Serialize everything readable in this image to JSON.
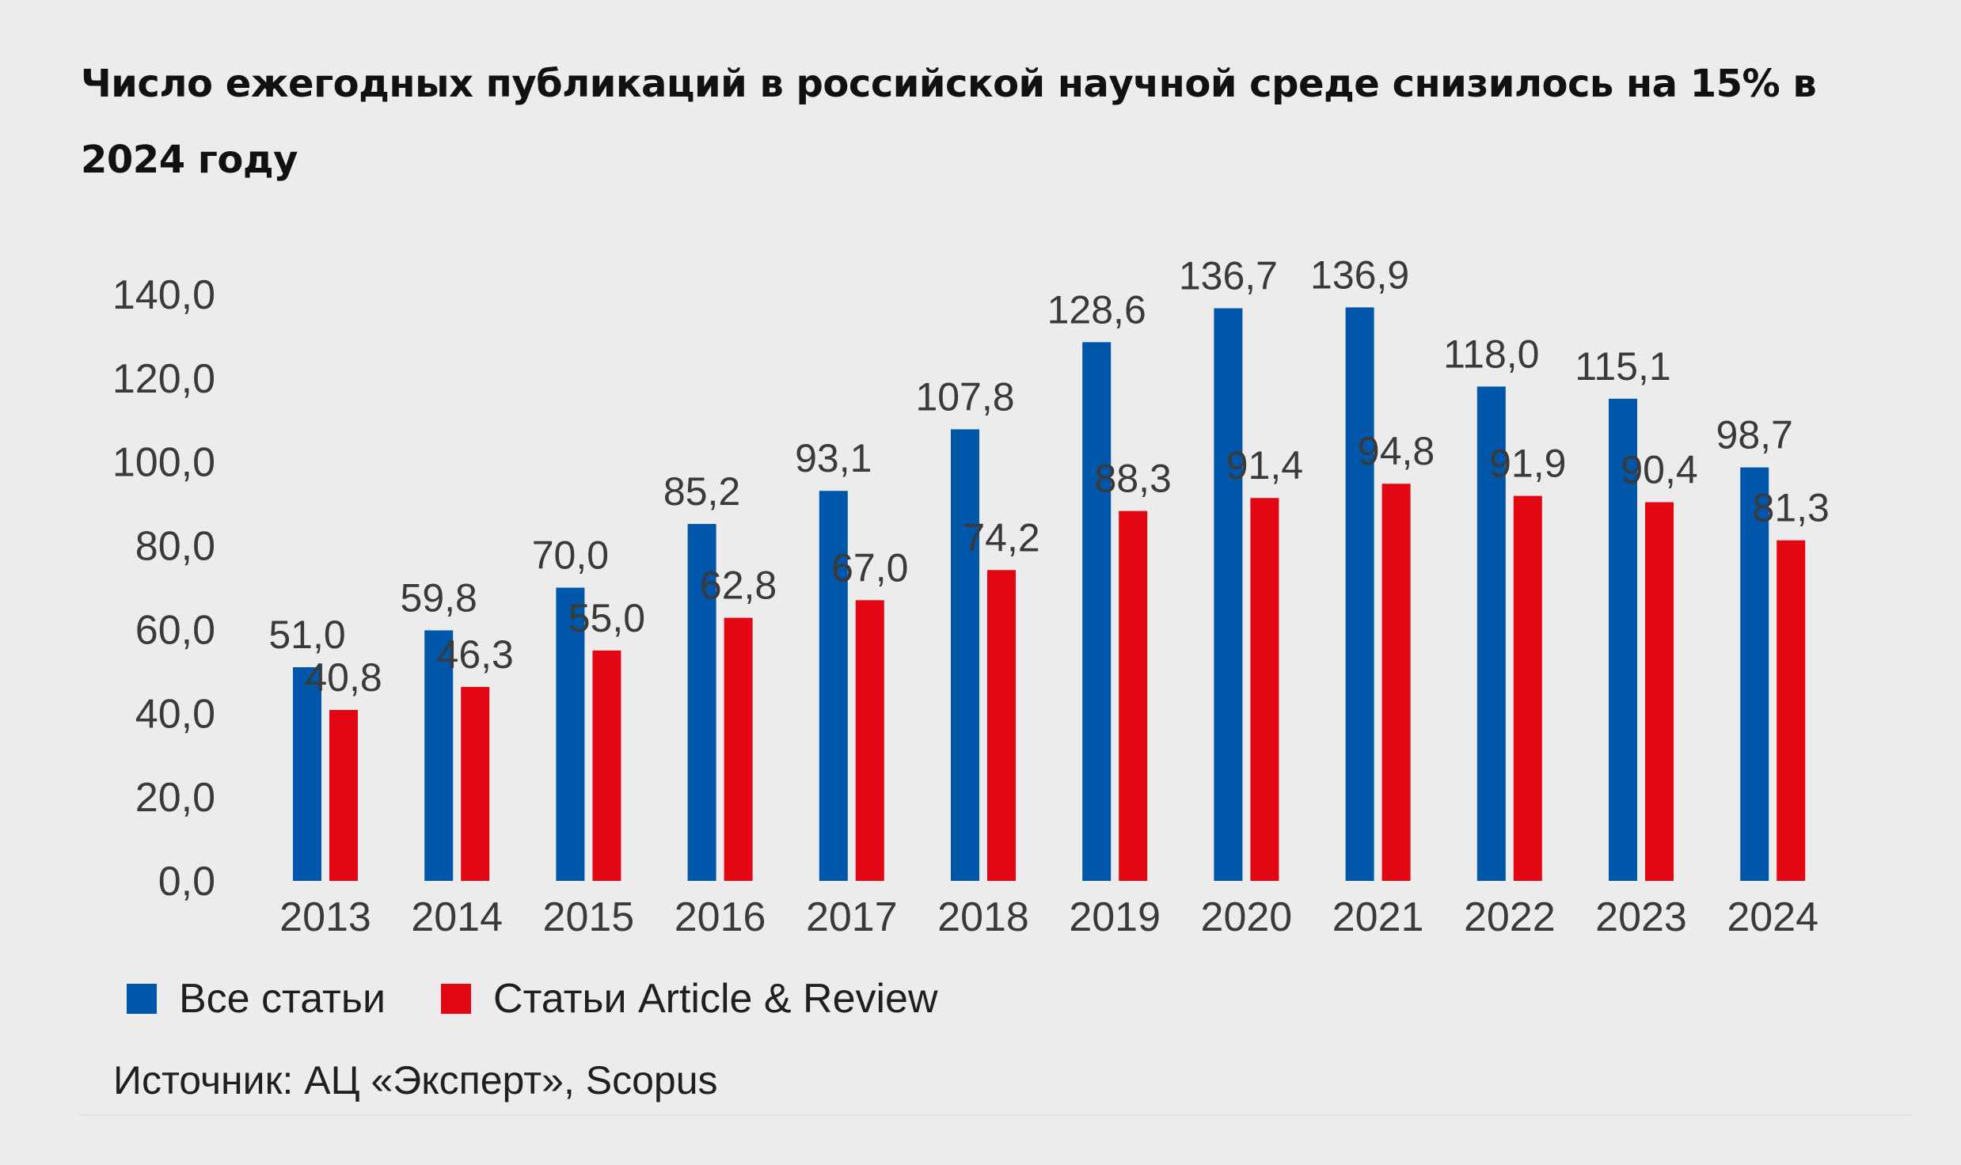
{
  "chart_data": {
    "type": "bar",
    "title": "Число ежегодных публикаций в российской научной среде снизилось на 15% в 2024 году",
    "categories": [
      "2013",
      "2014",
      "2015",
      "2016",
      "2017",
      "2018",
      "2019",
      "2020",
      "2021",
      "2022",
      "2023",
      "2024"
    ],
    "series": [
      {
        "name": "Все статьи",
        "color": "#0056a8",
        "values": [
          51.0,
          59.8,
          70.0,
          85.2,
          93.1,
          107.8,
          128.6,
          136.7,
          136.9,
          118.0,
          115.1,
          98.7
        ],
        "labels": [
          "51,0",
          "59,8",
          "70,0",
          "85,2",
          "93,1",
          "107,8",
          "128,6",
          "136,7",
          "136,9",
          "118,0",
          "115,1",
          "98,7"
        ]
      },
      {
        "name": "Статьи Article & Review",
        "color": "#e30613",
        "values": [
          40.8,
          46.3,
          55.0,
          62.8,
          67.0,
          74.2,
          88.3,
          91.4,
          94.8,
          91.9,
          90.4,
          81.3
        ],
        "labels": [
          "40,8",
          "46,3",
          "55,0",
          "62,8",
          "67,0",
          "74,2",
          "88,3",
          "91,4",
          "94,8",
          "91,9",
          "90,4",
          "81,3"
        ]
      }
    ],
    "y_ticks": [
      "0,0",
      "20,0",
      "40,0",
      "60,0",
      "80,0",
      "100,0",
      "120,0",
      "140,0"
    ],
    "ylim": [
      0,
      140
    ],
    "grid": false,
    "legend_position": "bottom-left"
  },
  "source": "Источник: АЦ «Эксперт», Scopus"
}
